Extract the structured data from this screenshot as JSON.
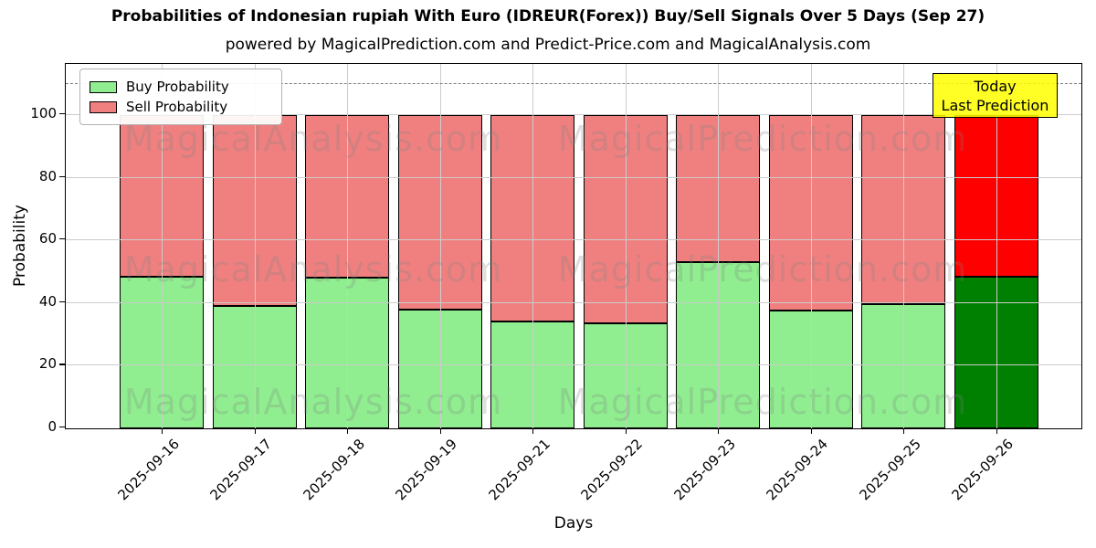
{
  "title": "Probabilities of Indonesian rupiah With Euro (IDREUR(Forex)) Buy/Sell Signals Over 5 Days (Sep 27)",
  "subtitle": "powered by MagicalPrediction.com and Predict-Price.com and MagicalAnalysis.com",
  "legend": {
    "buy_label": "Buy Probability",
    "sell_label": "Sell Probability"
  },
  "annotation": {
    "line1": "Today",
    "line2": "Last Prediction",
    "bg_color": "#FFFF00"
  },
  "axes": {
    "xlabel": "Days",
    "ylabel": "Probability",
    "yticks": [
      0,
      20,
      40,
      60,
      80,
      100
    ]
  },
  "watermarks": {
    "left_text": "MagicalAnalysis.com",
    "right_text": "MagicalPrediction.com"
  },
  "colors": {
    "buy": "#90EE90",
    "sell": "#F08080",
    "today_buy": "#008000",
    "today_sell": "#FF0000",
    "grid": "#CCCCCC",
    "dashed_line": "#7F7F7F",
    "watermark": "#808080"
  },
  "chart_data": {
    "type": "bar",
    "stacked": true,
    "title": "Probabilities of Indonesian rupiah With Euro (IDREUR(Forex)) Buy/Sell Signals Over 5 Days (Sep 27)",
    "xlabel": "Days",
    "ylabel": "Probability",
    "categories": [
      "2025-09-16",
      "2025-09-17",
      "2025-09-18",
      "2025-09-19",
      "2025-09-21",
      "2025-09-22",
      "2025-09-23",
      "2025-09-24",
      "2025-09-25",
      "2025-09-26"
    ],
    "series": [
      {
        "name": "Buy Probability",
        "values": [
          48.5,
          39,
          48,
          38,
          34,
          33.5,
          53,
          37.5,
          39.5,
          48.5
        ]
      },
      {
        "name": "Sell Probability",
        "values": [
          51.5,
          61,
          52,
          62,
          66,
          66.5,
          47,
          62.5,
          60.5,
          51.5
        ]
      }
    ],
    "today_index": 9,
    "bar_total": 100,
    "ylim": [
      0,
      116
    ],
    "dashed_line_y": 110,
    "grid": true,
    "legend_position": "upper left"
  }
}
